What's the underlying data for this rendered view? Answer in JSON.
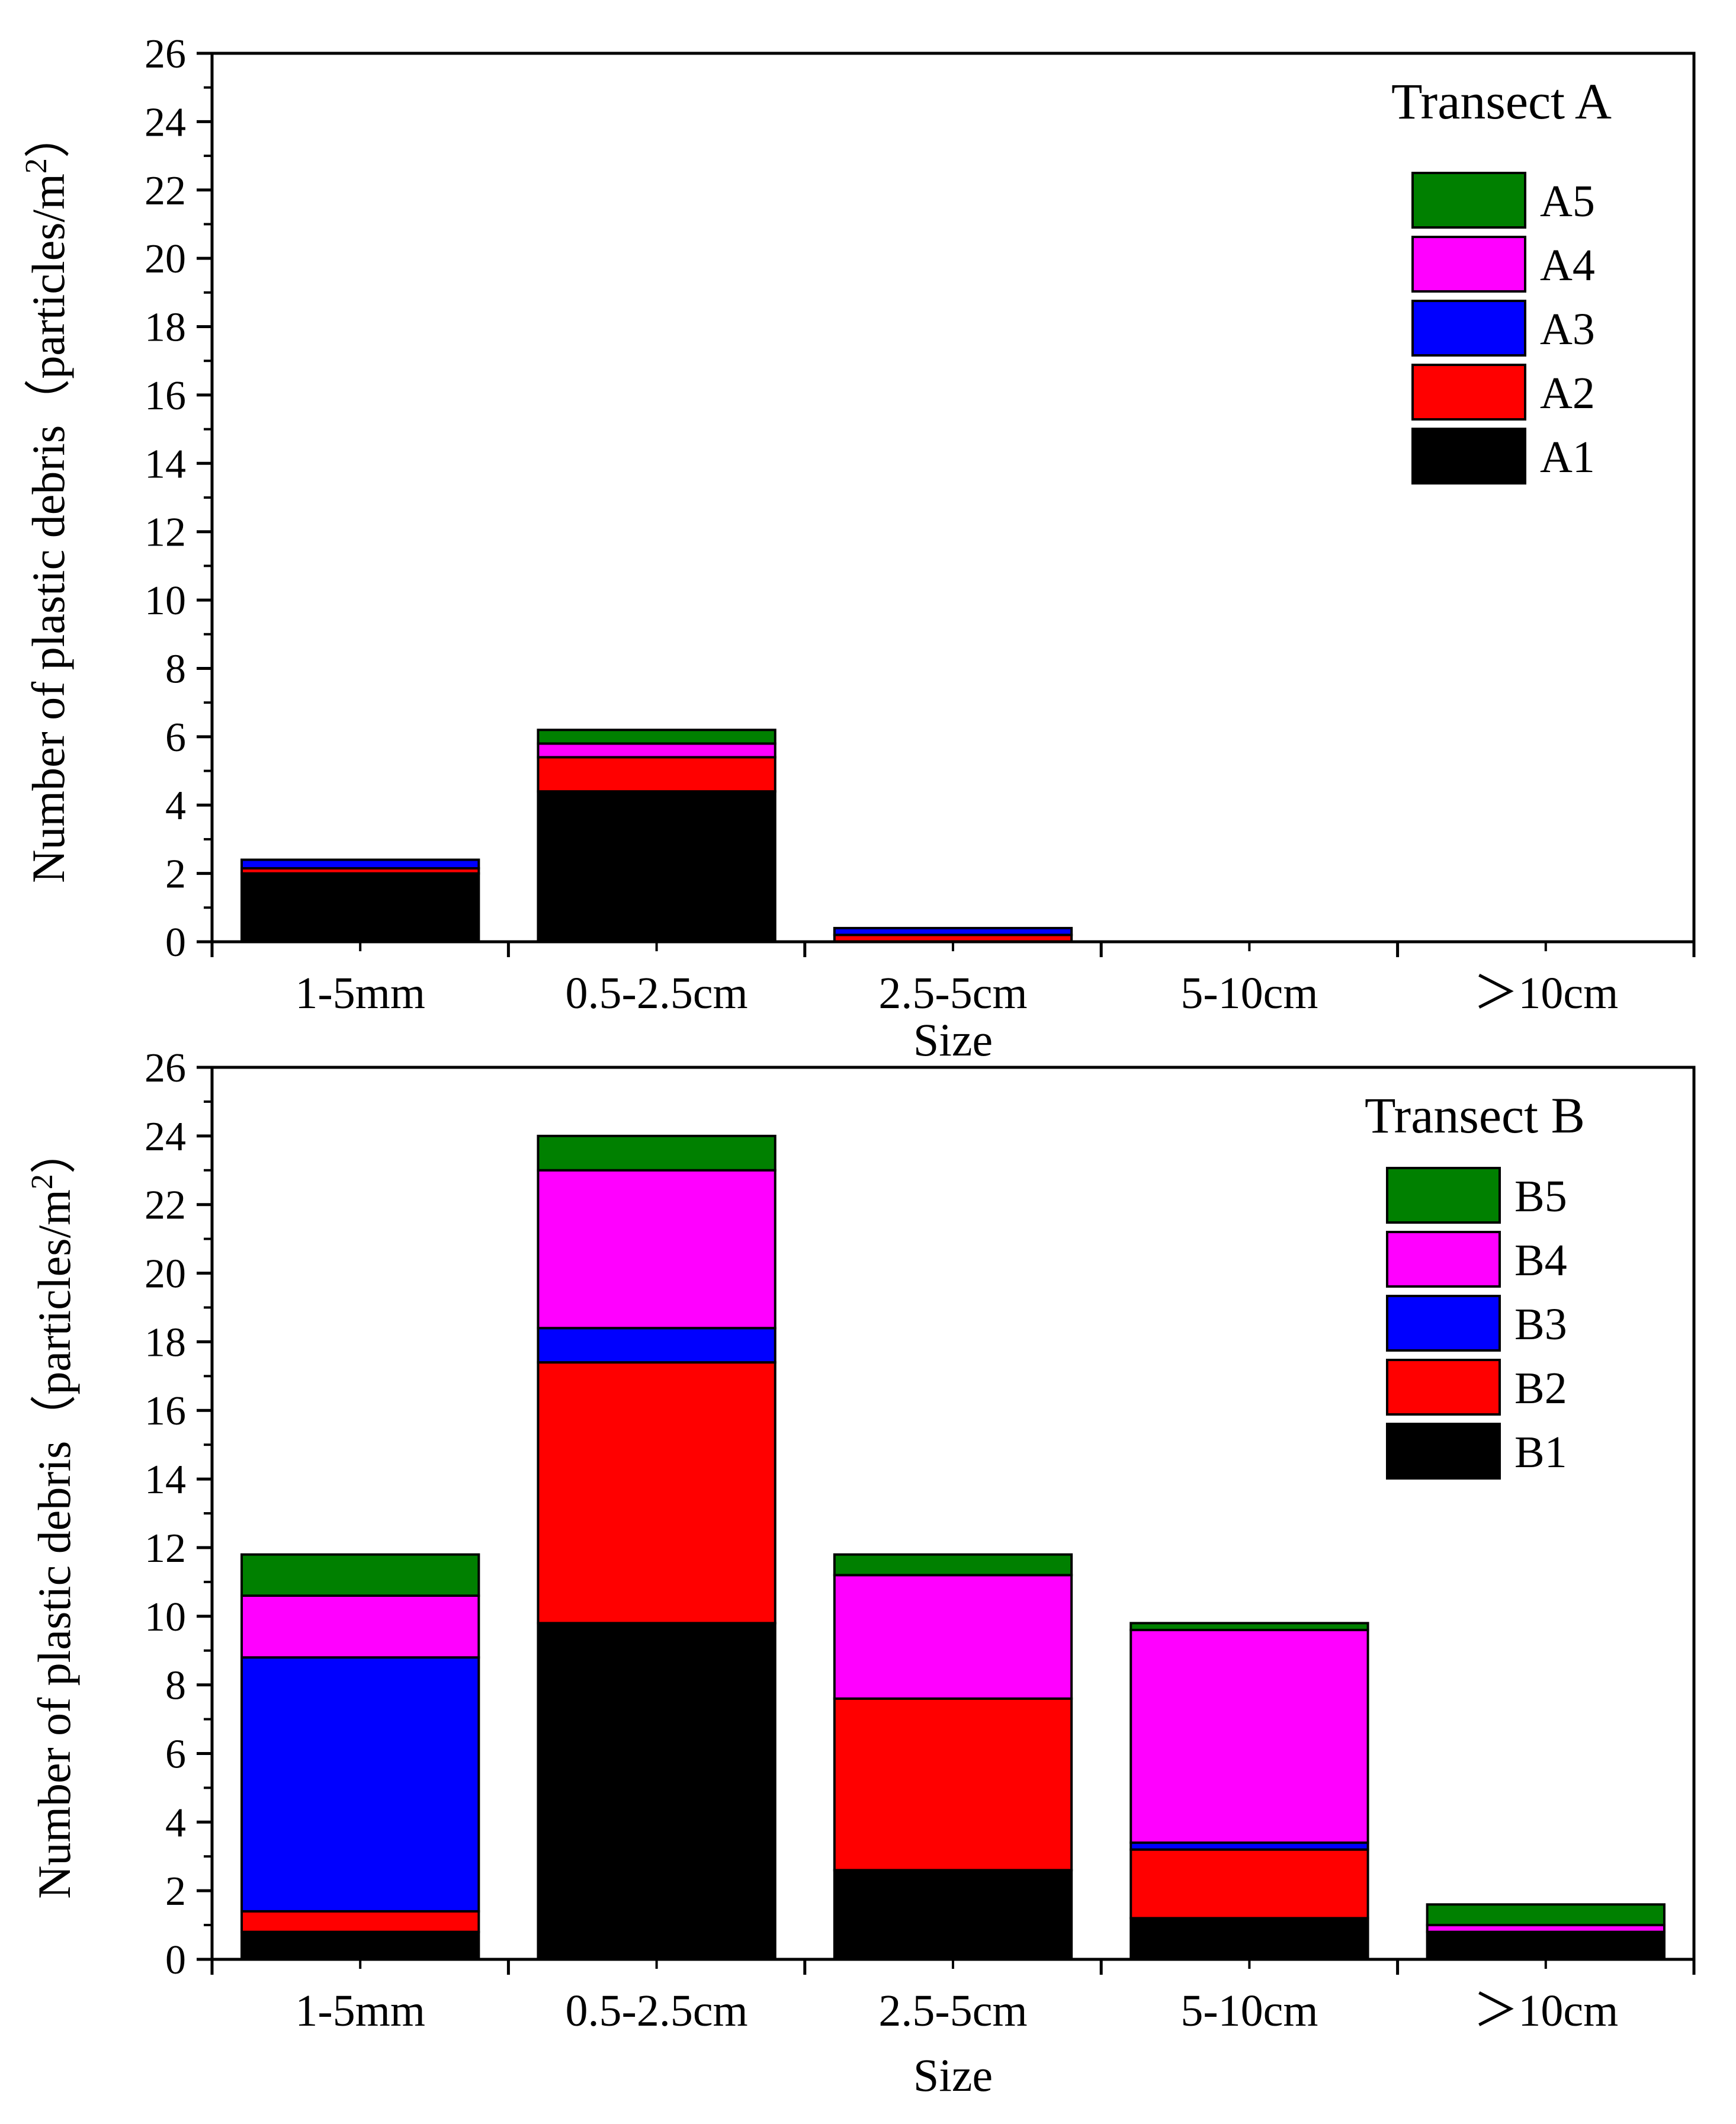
{
  "chart_data": [
    {
      "type": "bar",
      "stacked": true,
      "title": "Transect A",
      "xlabel": "Size",
      "ylabel": "Number of plastic debris（particles/m²）",
      "ylabel_main": "Number of plastic debris（particles/m",
      "ylabel_sup": "2",
      "ylabel_end": "）",
      "ylim": [
        0,
        26
      ],
      "yticks": [
        0,
        2,
        4,
        6,
        8,
        10,
        12,
        14,
        16,
        18,
        20,
        22,
        24,
        26
      ],
      "categories": [
        "1-5mm",
        "0.5-2.5cm",
        "2.5-5cm",
        "5-10cm",
        "＞10cm"
      ],
      "legend_position": "top-right",
      "series": [
        {
          "name": "A1",
          "color": "#000000",
          "values": [
            2.0,
            4.4,
            0.0,
            0.0,
            0.0
          ]
        },
        {
          "name": "A2",
          "color": "#ff0000",
          "values": [
            0.15,
            1.0,
            0.2,
            0.0,
            0.0
          ]
        },
        {
          "name": "A3",
          "color": "#0000ff",
          "values": [
            0.25,
            0.0,
            0.2,
            0.0,
            0.0
          ]
        },
        {
          "name": "A4",
          "color": "#ff00ff",
          "values": [
            0.0,
            0.4,
            0.0,
            0.0,
            0.0
          ]
        },
        {
          "name": "A5",
          "color": "#008000",
          "values": [
            0.0,
            0.4,
            0.0,
            0.0,
            0.0
          ]
        }
      ]
    },
    {
      "type": "bar",
      "stacked": true,
      "title": "Transect B",
      "xlabel": "Size",
      "ylabel": "Number of plastic debris（particles/m²）",
      "ylabel_main": "Number of plastic debris（particles/m",
      "ylabel_sup": "2",
      "ylabel_end": "）",
      "ylim": [
        0,
        26
      ],
      "yticks": [
        0,
        2,
        4,
        6,
        8,
        10,
        12,
        14,
        16,
        18,
        20,
        22,
        24,
        26
      ],
      "categories": [
        "1-5mm",
        "0.5-2.5cm",
        "2.5-5cm",
        "5-10cm",
        "＞10cm"
      ],
      "legend_position": "top-right",
      "series": [
        {
          "name": "B1",
          "color": "#000000",
          "values": [
            0.8,
            9.8,
            2.6,
            1.2,
            0.8
          ]
        },
        {
          "name": "B2",
          "color": "#ff0000",
          "values": [
            0.6,
            7.6,
            5.0,
            2.0,
            0.0
          ]
        },
        {
          "name": "B3",
          "color": "#0000ff",
          "values": [
            7.4,
            1.0,
            0.0,
            0.2,
            0.0
          ]
        },
        {
          "name": "B4",
          "color": "#ff00ff",
          "values": [
            1.8,
            4.6,
            3.6,
            6.2,
            0.2
          ]
        },
        {
          "name": "B5",
          "color": "#008000",
          "values": [
            1.2,
            1.0,
            0.6,
            0.2,
            0.6
          ]
        }
      ]
    }
  ]
}
